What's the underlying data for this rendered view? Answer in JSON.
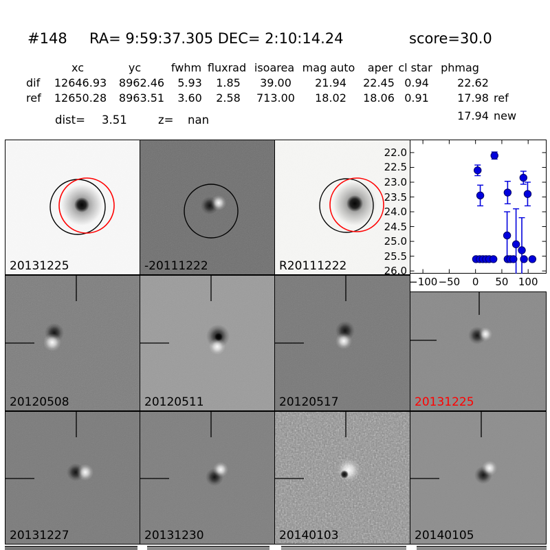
{
  "header": {
    "id": "#148",
    "coords": "RA= 9:59:37.305 DEC= 2:10:14.24",
    "score": "score=30.0"
  },
  "table": {
    "columns": [
      "xc",
      "yc",
      "fwhm",
      "fluxrad",
      "isoarea",
      "mag auto",
      "aper",
      "cl star",
      "phmag"
    ],
    "rows": [
      {
        "label": "dif",
        "values": [
          "12646.93",
          "8962.46",
          "5.93",
          "1.85",
          "39.00",
          "21.94",
          "22.45",
          "0.94",
          "22.62"
        ],
        "suffix": ""
      },
      {
        "label": "ref",
        "values": [
          "12650.28",
          "8963.51",
          "3.60",
          "2.58",
          "713.00",
          "18.02",
          "18.06",
          "0.91",
          "17.98"
        ],
        "suffix": "ref"
      }
    ],
    "extra_phmag": {
      "value": "17.94",
      "suffix": "new"
    },
    "dist_label": "dist=",
    "dist": "3.51",
    "z_label": "z=",
    "z": "nan"
  },
  "stamps": [
    {
      "label": "20131225",
      "color": "#000000"
    },
    {
      "label": "-20111222",
      "color": "#000000"
    },
    {
      "label": "R20111222",
      "color": "#000000"
    },
    {
      "label": "20120508",
      "color": "#000000"
    },
    {
      "label": "20120511",
      "color": "#000000"
    },
    {
      "label": "20120517",
      "color": "#000000"
    },
    {
      "label": "20131225",
      "color": "#ff0000"
    },
    {
      "label": "20131227",
      "color": "#000000"
    },
    {
      "label": "20131230",
      "color": "#000000"
    },
    {
      "label": "20140103",
      "color": "#000000"
    },
    {
      "label": "20140105",
      "color": "#000000"
    }
  ],
  "chart_data": {
    "type": "scatter",
    "title": "",
    "xlabel": "",
    "ylabel": "",
    "xlim": [
      -125,
      135
    ],
    "ylim": [
      26.09,
      21.56
    ],
    "y_axis_inverted_magnitudes": true,
    "grid": false,
    "legend": "none",
    "xticks": [
      -100,
      -50,
      0,
      50,
      100
    ],
    "yticks": [
      22.0,
      22.5,
      23.0,
      23.5,
      24.0,
      24.5,
      25.0,
      25.5,
      26.0
    ],
    "marker_color": "#0000dd",
    "points": [
      {
        "x": 4,
        "y": 22.6,
        "yerr": 0.18
      },
      {
        "x": 9,
        "y": 23.45,
        "yerr": 0.35
      },
      {
        "x": 36,
        "y": 22.1,
        "yerr": 0.12
      },
      {
        "x": 61,
        "y": 23.35,
        "yerr": 0.38
      },
      {
        "x": 60,
        "y": 24.8,
        "yerr": 0.8
      },
      {
        "x": 77,
        "y": 25.1,
        "yerr": 1.2
      },
      {
        "x": 88,
        "y": 25.3,
        "yerr": 1.1
      },
      {
        "x": 91,
        "y": 22.85,
        "yerr": 0.22
      },
      {
        "x": 99,
        "y": 23.4,
        "yerr": 0.4
      },
      {
        "x": 1,
        "y": 25.6,
        "yerr": 0.05
      },
      {
        "x": 8,
        "y": 25.6,
        "yerr": 0.05
      },
      {
        "x": 14,
        "y": 25.6,
        "yerr": 0.05
      },
      {
        "x": 20,
        "y": 25.6,
        "yerr": 0.05
      },
      {
        "x": 26,
        "y": 25.6,
        "yerr": 0.05
      },
      {
        "x": 34,
        "y": 25.6,
        "yerr": 0.05
      },
      {
        "x": 61,
        "y": 25.6,
        "yerr": 0.05
      },
      {
        "x": 66,
        "y": 25.6,
        "yerr": 0.05
      },
      {
        "x": 72,
        "y": 25.6,
        "yerr": 0.05
      },
      {
        "x": 92,
        "y": 25.6,
        "yerr": 0.05
      },
      {
        "x": 108,
        "y": 25.6,
        "yerr": 0.05
      }
    ]
  }
}
